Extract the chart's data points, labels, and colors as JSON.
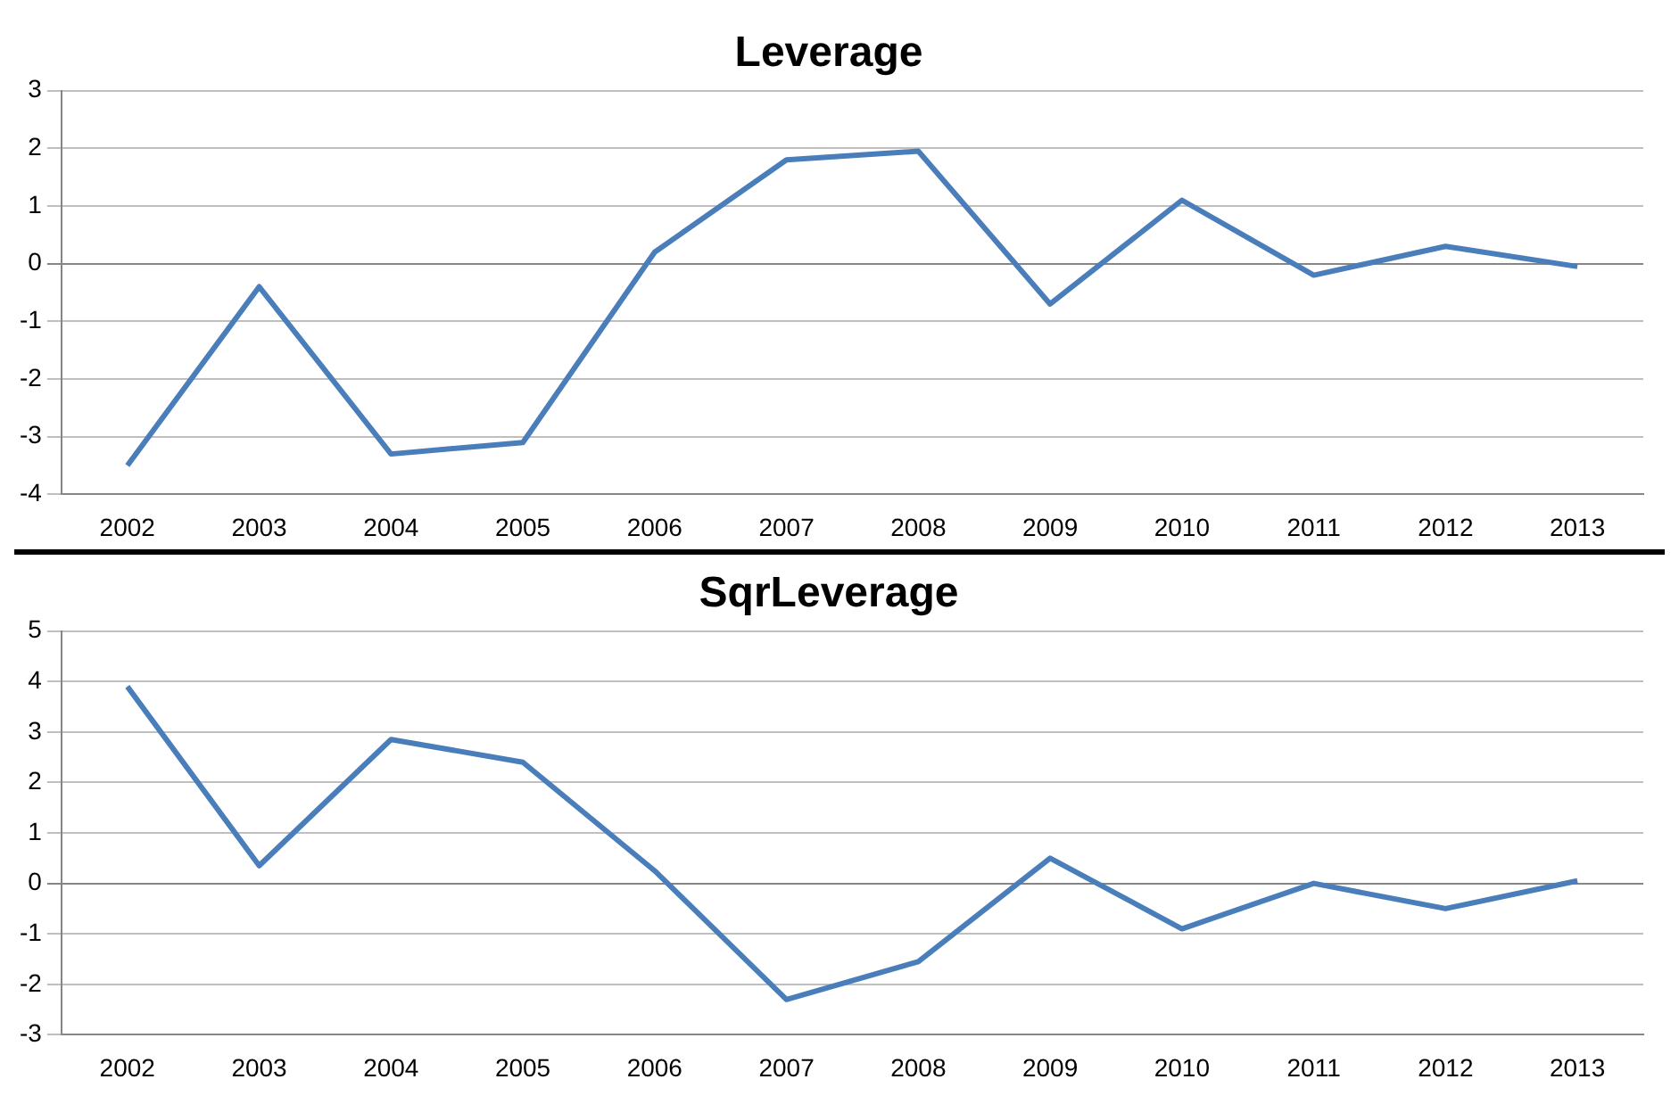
{
  "chart_data": [
    {
      "type": "line",
      "title": "Leverage",
      "categories": [
        "2002",
        "2003",
        "2004",
        "2005",
        "2006",
        "2007",
        "2008",
        "2009",
        "2010",
        "2011",
        "2012",
        "2013"
      ],
      "values": [
        -3.5,
        -0.4,
        -3.3,
        -3.1,
        0.2,
        1.8,
        1.95,
        -0.7,
        1.1,
        -0.2,
        0.3,
        -0.05
      ],
      "color": "#4a7ebb",
      "ylim": [
        -4,
        3
      ],
      "yticks": [
        -4,
        -3,
        -2,
        -1,
        0,
        1,
        2,
        3
      ],
      "grid": "y",
      "marker": "none",
      "legend": false
    },
    {
      "type": "line",
      "title": "SqrLeverage",
      "categories": [
        "2002",
        "2003",
        "2004",
        "2005",
        "2006",
        "2007",
        "2008",
        "2009",
        "2010",
        "2011",
        "2012",
        "2013"
      ],
      "values": [
        3.9,
        0.35,
        2.85,
        2.4,
        0.25,
        -2.3,
        -1.55,
        0.5,
        -0.9,
        0,
        -0.5,
        0.05
      ],
      "color": "#4a7ebb",
      "ylim": [
        -3,
        5
      ],
      "yticks": [
        -3,
        -2,
        -1,
        0,
        1,
        2,
        3,
        4,
        5
      ],
      "grid": "y",
      "marker": "none",
      "legend": false
    }
  ]
}
